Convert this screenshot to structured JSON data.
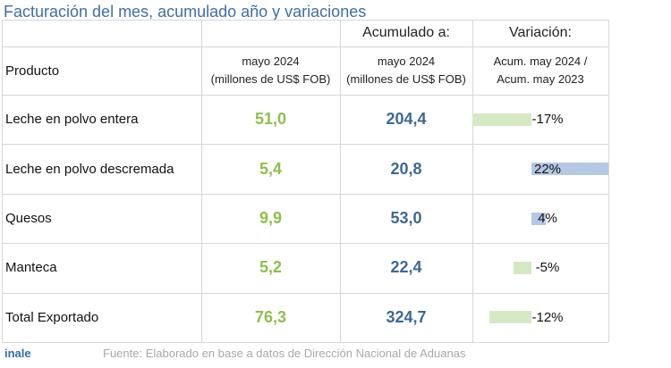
{
  "title": "Facturación del mes, acumulado año y variaciones",
  "table": {
    "group_headers": {
      "accumulated": "Acumulado a:",
      "variation": "Variación:"
    },
    "columns": {
      "product": "Producto",
      "month": [
        "mayo 2024",
        "(millones de US$ FOB)"
      ],
      "accumulated": [
        "mayo 2024",
        "(millones de US$ FOB)"
      ],
      "variation": [
        "Acum. may 2024 /",
        "Acum. may 2023"
      ]
    },
    "rows": [
      {
        "product": "Leche en polvo entera",
        "month": "51,0",
        "accumulated": "204,4",
        "variation": {
          "value": -17,
          "label": "-17%"
        }
      },
      {
        "product": "Leche en polvo descremada",
        "month": "5,4",
        "accumulated": "20,8",
        "variation": {
          "value": 22,
          "label": "22%"
        }
      },
      {
        "product": "Quesos",
        "month": "9,9",
        "accumulated": "53,0",
        "variation": {
          "value": 4,
          "label": "4%"
        }
      },
      {
        "product": "Manteca",
        "month": "5,2",
        "accumulated": "22,4",
        "variation": {
          "value": -5,
          "label": "-5%"
        }
      },
      {
        "product": "Total Exportado",
        "month": "76,3",
        "accumulated": "324,7",
        "variation": {
          "value": -12,
          "label": "-12%"
        }
      }
    ]
  },
  "footer": {
    "brand": "inale",
    "source": "Fuente: Elaborado en base a datos de Dirección Nacional de Aduanas"
  }
}
